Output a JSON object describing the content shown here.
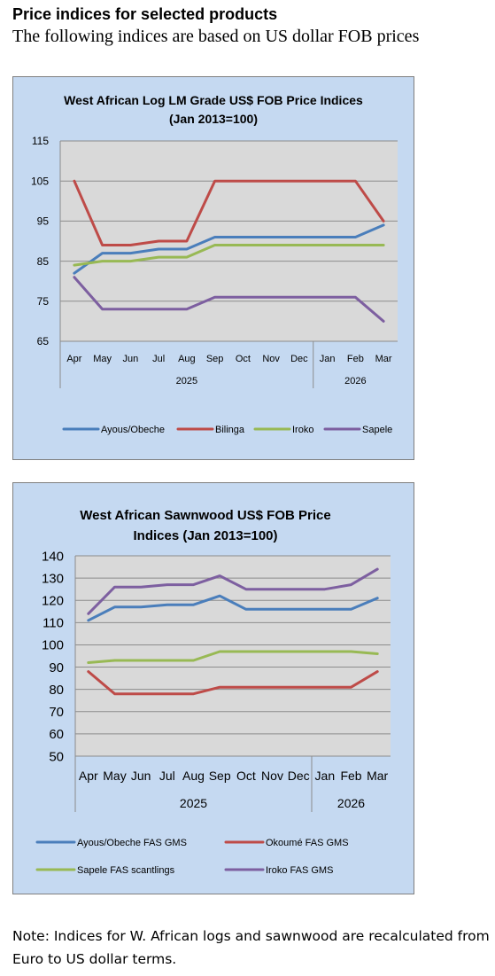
{
  "page": {
    "heading": "Price indices for selected products",
    "subheading": "The following indices are based on US dollar FOB prices",
    "note": "Note: Indices for W. African logs and sawnwood are recalculated from Euro to US dollar terms."
  },
  "chart_data": [
    {
      "type": "line",
      "title_lines": [
        "West African Log LM Grade US$ FOB Price Indices",
        "(Jan 2013=100)"
      ],
      "categories": [
        "Apr",
        "May",
        "Jun",
        "Jul",
        "Aug",
        "Sep",
        "Oct",
        "Nov",
        "Dec",
        "Jan",
        "Feb",
        "Mar"
      ],
      "year_groups": [
        {
          "label": "2025",
          "start": 0,
          "end": 8
        },
        {
          "label": "2026",
          "start": 9,
          "end": 11
        }
      ],
      "ylim": [
        65,
        115
      ],
      "yticks": [
        65,
        75,
        85,
        95,
        105,
        115
      ],
      "grid": true,
      "legend_position": "bottom",
      "series": [
        {
          "name": "Ayous/Obeche",
          "color": "#4a7ebb",
          "values": [
            82,
            87,
            87,
            88,
            88,
            91,
            91,
            91,
            91,
            91,
            91,
            94
          ]
        },
        {
          "name": "Bilinga",
          "color": "#be4b48",
          "values": [
            105,
            89,
            89,
            90,
            90,
            105,
            105,
            105,
            105,
            105,
            105,
            95
          ]
        },
        {
          "name": "Iroko",
          "color": "#98b954",
          "values": [
            84,
            85,
            85,
            86,
            86,
            89,
            89,
            89,
            89,
            89,
            89,
            89
          ]
        },
        {
          "name": "Sapele",
          "color": "#7d5fa0",
          "values": [
            81,
            73,
            73,
            73,
            73,
            76,
            76,
            76,
            76,
            76,
            76,
            70
          ]
        }
      ]
    },
    {
      "type": "line",
      "title_lines": [
        "West African Sawnwood US$ FOB Price",
        "Indices (Jan 2013=100)"
      ],
      "categories": [
        "Apr",
        "May",
        "Jun",
        "Jul",
        "Aug",
        "Sep",
        "Oct",
        "Nov",
        "Dec",
        "Jan",
        "Feb",
        "Mar"
      ],
      "year_groups": [
        {
          "label": "2025",
          "start": 0,
          "end": 8
        },
        {
          "label": "2026",
          "start": 9,
          "end": 11
        }
      ],
      "ylim": [
        50,
        140
      ],
      "yticks": [
        50,
        60,
        70,
        80,
        90,
        100,
        110,
        120,
        130,
        140
      ],
      "grid": true,
      "legend_position": "bottom",
      "series": [
        {
          "name": "Ayous/Obeche  FAS GMS",
          "color": "#4a7ebb",
          "values": [
            111,
            117,
            117,
            118,
            118,
            122,
            116,
            116,
            116,
            116,
            116,
            121
          ]
        },
        {
          "name": "Okoumé  FAS GMS",
          "color": "#be4b48",
          "values": [
            88,
            78,
            78,
            78,
            78,
            81,
            81,
            81,
            81,
            81,
            81,
            88
          ]
        },
        {
          "name": "Sapele FAS scantlings",
          "color": "#98b954",
          "values": [
            92,
            93,
            93,
            93,
            93,
            97,
            97,
            97,
            97,
            97,
            97,
            96
          ]
        },
        {
          "name": "Iroko FAS GMS",
          "color": "#7d5fa0",
          "values": [
            114,
            126,
            126,
            127,
            127,
            131,
            125,
            125,
            125,
            125,
            127,
            134
          ]
        }
      ]
    }
  ]
}
